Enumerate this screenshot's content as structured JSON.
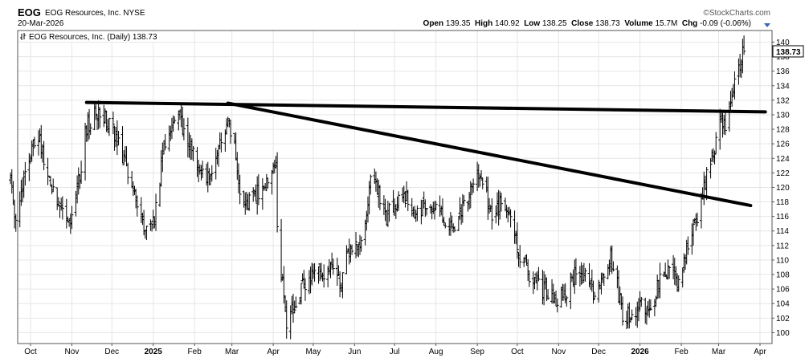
{
  "header": {
    "symbol": "EOG",
    "company": "EOG Resources, Inc.",
    "exchange": "NYSE",
    "date": "20-Mar-2026",
    "source": "©StockCharts.com",
    "open_label": "Open",
    "open": "139.35",
    "high_label": "High",
    "high": "140.92",
    "low_label": "Low",
    "low": "138.25",
    "close_label": "Close",
    "close": "138.73",
    "volume_label": "Volume",
    "volume": "15.7M",
    "chg_label": "Chg",
    "chg": "-0.09 (-0.06%)",
    "arrow_icon": "chevron-down-icon"
  },
  "chart_data": {
    "type": "ohlc",
    "series_label": "EOG Resources, Inc. (Daily) 138.73",
    "last_value": "138.73",
    "last_value_box_color": "#ffffff",
    "y_ticks": [
      100,
      102,
      104,
      106,
      108,
      110,
      112,
      114,
      116,
      118,
      120,
      122,
      124,
      126,
      128,
      130,
      132,
      134,
      136,
      138,
      140
    ],
    "ylim": [
      98.5,
      141.6
    ],
    "x_ticks": [
      {
        "label": "Oct",
        "date": "2024-10-01",
        "bold": false
      },
      {
        "label": "Nov",
        "date": "2024-11-01",
        "bold": false
      },
      {
        "label": "Dec",
        "date": "2024-12-01",
        "bold": false
      },
      {
        "label": "2025",
        "date": "2025-01-01",
        "bold": true
      },
      {
        "label": "Feb",
        "date": "2025-02-01",
        "bold": false
      },
      {
        "label": "Mar",
        "date": "2025-03-01",
        "bold": false
      },
      {
        "label": "Apr",
        "date": "2025-04-01",
        "bold": false
      },
      {
        "label": "May",
        "date": "2025-05-01",
        "bold": false
      },
      {
        "label": "Jun",
        "date": "2025-06-01",
        "bold": false
      },
      {
        "label": "Jul",
        "date": "2025-07-01",
        "bold": false
      },
      {
        "label": "Aug",
        "date": "2025-08-01",
        "bold": false
      },
      {
        "label": "Sep",
        "date": "2025-09-01",
        "bold": false
      },
      {
        "label": "Oct",
        "date": "2025-10-01",
        "bold": false
      },
      {
        "label": "Nov",
        "date": "2025-11-01",
        "bold": false
      },
      {
        "label": "Dec",
        "date": "2025-12-01",
        "bold": false
      },
      {
        "label": "2026",
        "date": "2026-01-01",
        "bold": true
      },
      {
        "label": "Feb",
        "date": "2026-02-01",
        "bold": false
      },
      {
        "label": "Mar",
        "date": "2026-03-01",
        "bold": false
      },
      {
        "label": "Apr",
        "date": "2026-04-01",
        "bold": false
      }
    ],
    "price_path": [
      [
        "2024-09-16",
        121.0
      ],
      [
        "2024-09-20",
        115.0
      ],
      [
        "2024-09-25",
        120.5
      ],
      [
        "2024-10-02",
        126.0
      ],
      [
        "2024-10-07",
        127.0
      ],
      [
        "2024-10-15",
        121.0
      ],
      [
        "2024-10-24",
        117.0
      ],
      [
        "2024-11-01",
        116.0
      ],
      [
        "2024-11-06",
        120.5
      ],
      [
        "2024-11-12",
        128.5
      ],
      [
        "2024-11-21",
        130.5
      ],
      [
        "2024-11-27",
        129.0
      ],
      [
        "2024-12-04",
        127.0
      ],
      [
        "2024-12-12",
        123.0
      ],
      [
        "2024-12-20",
        118.0
      ],
      [
        "2024-12-26",
        114.0
      ],
      [
        "2025-01-02",
        116.0
      ],
      [
        "2025-01-08",
        124.5
      ],
      [
        "2025-01-17",
        130.5
      ],
      [
        "2025-01-22",
        129.0
      ],
      [
        "2025-01-30",
        125.0
      ],
      [
        "2025-02-05",
        123.0
      ],
      [
        "2025-02-12",
        121.0
      ],
      [
        "2025-02-20",
        125.5
      ],
      [
        "2025-02-26",
        129.5
      ],
      [
        "2025-03-03",
        126.5
      ],
      [
        "2025-03-07",
        120.0
      ],
      [
        "2025-03-13",
        117.5
      ],
      [
        "2025-03-20",
        119.0
      ],
      [
        "2025-03-26",
        120.5
      ],
      [
        "2025-04-01",
        123.5
      ],
      [
        "2025-04-03",
        122.5
      ],
      [
        "2025-04-04",
        114.0
      ],
      [
        "2025-04-08",
        106.5
      ],
      [
        "2025-04-11",
        101.0
      ],
      [
        "2025-04-17",
        104.0
      ],
      [
        "2025-04-24",
        106.5
      ],
      [
        "2025-05-01",
        108.0
      ],
      [
        "2025-05-08",
        108.5
      ],
      [
        "2025-05-14",
        109.5
      ],
      [
        "2025-05-21",
        106.5
      ],
      [
        "2025-05-27",
        110.5
      ],
      [
        "2025-06-03",
        111.5
      ],
      [
        "2025-06-09",
        115.0
      ],
      [
        "2025-06-13",
        121.5
      ],
      [
        "2025-06-18",
        120.0
      ],
      [
        "2025-06-24",
        115.5
      ],
      [
        "2025-07-01",
        117.5
      ],
      [
        "2025-07-10",
        119.0
      ],
      [
        "2025-07-18",
        116.5
      ],
      [
        "2025-07-28",
        118.0
      ],
      [
        "2025-08-05",
        116.0
      ],
      [
        "2025-08-12",
        114.5
      ],
      [
        "2025-08-20",
        116.5
      ],
      [
        "2025-08-28",
        119.5
      ],
      [
        "2025-09-02",
        122.5
      ],
      [
        "2025-09-06",
        120.0
      ],
      [
        "2025-09-12",
        116.5
      ],
      [
        "2025-09-19",
        117.5
      ],
      [
        "2025-09-26",
        115.5
      ],
      [
        "2025-10-01",
        112.0
      ],
      [
        "2025-10-07",
        109.0
      ],
      [
        "2025-10-15",
        106.5
      ],
      [
        "2025-10-24",
        105.5
      ],
      [
        "2025-11-01",
        104.5
      ],
      [
        "2025-11-07",
        106.0
      ],
      [
        "2025-11-14",
        108.5
      ],
      [
        "2025-11-21",
        107.5
      ],
      [
        "2025-11-28",
        105.5
      ],
      [
        "2025-12-04",
        108.5
      ],
      [
        "2025-12-10",
        110.5
      ],
      [
        "2025-12-15",
        106.5
      ],
      [
        "2025-12-19",
        102.0
      ],
      [
        "2025-12-26",
        103.0
      ],
      [
        "2026-01-02",
        104.0
      ],
      [
        "2026-01-09",
        103.5
      ],
      [
        "2026-01-16",
        107.0
      ],
      [
        "2026-01-22",
        108.5
      ],
      [
        "2026-01-29",
        107.5
      ],
      [
        "2026-02-04",
        110.5
      ],
      [
        "2026-02-10",
        114.5
      ],
      [
        "2026-02-16",
        118.0
      ],
      [
        "2026-02-20",
        121.5
      ],
      [
        "2026-02-26",
        124.5
      ],
      [
        "2026-03-02",
        130.5
      ],
      [
        "2026-03-06",
        128.5
      ],
      [
        "2026-03-10",
        132.0
      ],
      [
        "2026-03-14",
        134.5
      ],
      [
        "2026-03-18",
        138.0
      ],
      [
        "2026-03-20",
        138.73
      ]
    ],
    "trendlines": [
      {
        "from": [
          "2024-11-12",
          131.7
        ],
        "to": [
          "2026-04-05",
          130.4
        ],
        "color": "#000000"
      },
      {
        "from": [
          "2025-02-26",
          131.6
        ],
        "to": [
          "2026-03-25",
          117.5
        ],
        "color": "#000000"
      }
    ],
    "colors": {
      "bars": "#000000",
      "grid": "#e6e6e6",
      "plot_bg": "#ffffff",
      "frame": "#555555",
      "page_bg": "#ffffff"
    }
  }
}
